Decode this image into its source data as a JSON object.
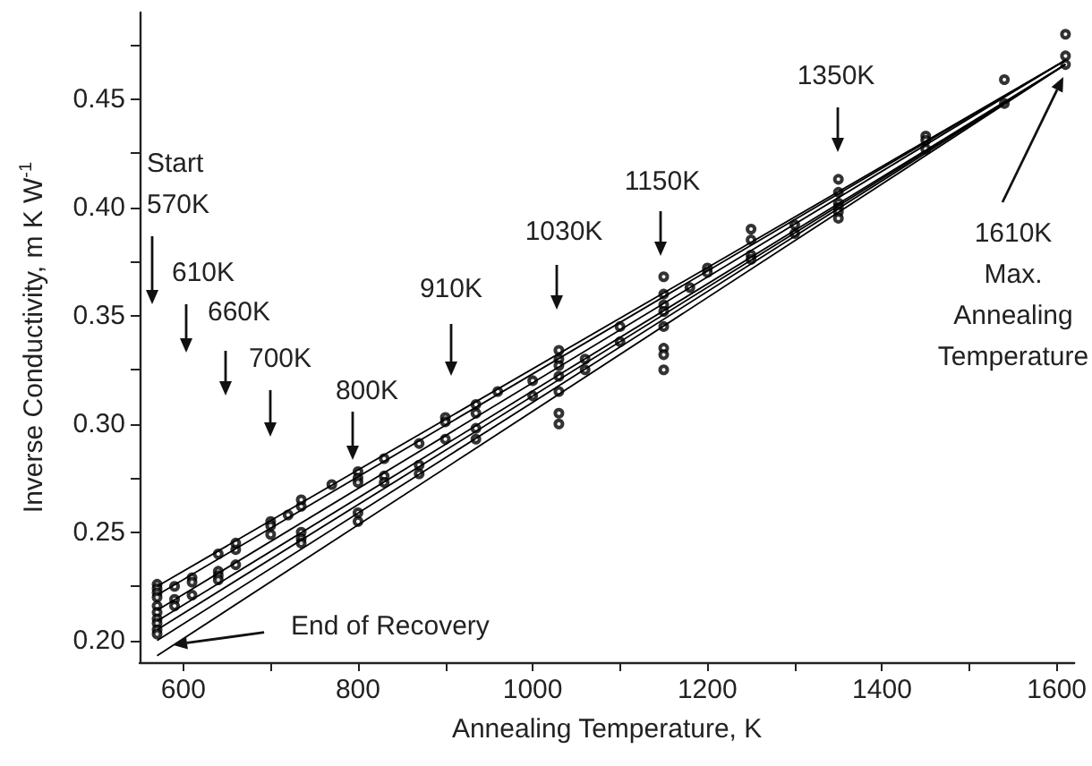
{
  "chart_data": {
    "type": "scatter",
    "xlabel": "Annealing Temperature, K",
    "ylabel": "Inverse Conductivity, m K W$^{-1}$",
    "xlim": [
      550,
      1620
    ],
    "ylim": [
      0.19,
      0.49
    ],
    "xticks": [
      600,
      {
        "value": 700,
        "label": null
      },
      800,
      {
        "value": 900,
        "label": null
      },
      1000,
      {
        "value": 1100,
        "label": null
      },
      1200,
      {
        "value": 1300,
        "label": null
      },
      1400,
      {
        "value": 1500,
        "label": null
      },
      1600
    ],
    "yticks": [
      {
        "value": 0.2,
        "label": "0.20"
      },
      {
        "value": 0.225,
        "label": null
      },
      0.25,
      {
        "value": 0.275,
        "label": null
      },
      {
        "value": 0.3,
        "label": "0.30"
      },
      {
        "value": 0.325,
        "label": null
      },
      0.35,
      {
        "value": 0.375,
        "label": null
      },
      {
        "value": 0.4,
        "label": "0.40"
      },
      {
        "value": 0.425,
        "label": null
      },
      0.45,
      {
        "value": 0.475,
        "label": null
      }
    ],
    "grid": false,
    "marker": "circle",
    "series": [
      {
        "color": "#000000",
        "x": [
          570,
          570,
          570,
          570,
          570,
          570,
          570,
          570,
          570,
          570,
          590,
          590,
          590,
          610,
          610,
          610,
          640,
          640,
          640,
          640,
          660,
          660,
          660,
          700,
          700,
          700,
          720,
          735,
          735,
          735,
          735,
          735,
          770,
          800,
          800,
          800,
          800,
          800,
          830,
          830,
          830,
          870,
          870,
          870,
          900,
          900,
          900,
          935,
          935,
          935,
          935,
          960,
          1000,
          1000,
          1030,
          1030,
          1030,
          1030,
          1030,
          1030,
          1030,
          1060,
          1060,
          1100,
          1100,
          1150,
          1150,
          1150,
          1150,
          1150,
          1150,
          1150,
          1150,
          1180,
          1200,
          1200,
          1250,
          1250,
          1250,
          1250,
          1300,
          1300,
          1350,
          1350,
          1350,
          1350,
          1350,
          1350,
          1450,
          1450,
          1450,
          1540,
          1540,
          1610,
          1610,
          1610
        ],
        "values": [
          0.226,
          0.224,
          0.222,
          0.22,
          0.216,
          0.213,
          0.21,
          0.208,
          0.205,
          0.203,
          0.225,
          0.219,
          0.216,
          0.229,
          0.227,
          0.221,
          0.232,
          0.24,
          0.23,
          0.228,
          0.242,
          0.245,
          0.235,
          0.249,
          0.255,
          0.253,
          0.258,
          0.262,
          0.265,
          0.25,
          0.247,
          0.245,
          0.272,
          0.278,
          0.275,
          0.273,
          0.255,
          0.259,
          0.284,
          0.276,
          0.273,
          0.291,
          0.281,
          0.277,
          0.303,
          0.301,
          0.293,
          0.309,
          0.305,
          0.298,
          0.293,
          0.315,
          0.32,
          0.313,
          0.334,
          0.33,
          0.327,
          0.322,
          0.315,
          0.305,
          0.3,
          0.33,
          0.325,
          0.345,
          0.338,
          0.368,
          0.36,
          0.355,
          0.352,
          0.345,
          0.335,
          0.332,
          0.325,
          0.363,
          0.372,
          0.37,
          0.39,
          0.385,
          0.378,
          0.376,
          0.392,
          0.388,
          0.413,
          0.407,
          0.402,
          0.4,
          0.398,
          0.395,
          0.433,
          0.431,
          0.427,
          0.459,
          0.448,
          0.48,
          0.47,
          0.466
        ]
      },
      {
        "type": "line",
        "marker": "none",
        "color": "#000000",
        "x": [
          570,
          1610
        ],
        "values": [
          0.225,
          0.468
        ]
      },
      {
        "type": "line",
        "marker": "none",
        "color": "#000000",
        "x": [
          570,
          1610
        ],
        "values": [
          0.221,
          0.468
        ]
      },
      {
        "type": "line",
        "marker": "none",
        "color": "#000000",
        "x": [
          570,
          1610
        ],
        "values": [
          0.214,
          0.468
        ]
      },
      {
        "type": "line",
        "marker": "none",
        "color": "#000000",
        "x": [
          570,
          1610
        ],
        "values": [
          0.209,
          0.466
        ]
      },
      {
        "type": "line",
        "marker": "none",
        "color": "#000000",
        "x": [
          570,
          1610
        ],
        "values": [
          0.205,
          0.466
        ]
      },
      {
        "type": "line",
        "marker": "none",
        "color": "#000000",
        "x": [
          570,
          1610
        ],
        "values": [
          0.2,
          0.466
        ]
      },
      {
        "type": "line",
        "marker": "none",
        "color": "#000000",
        "x": [
          570,
          1610
        ],
        "values": [
          0.193,
          0.466
        ]
      }
    ],
    "annotations": [
      "Start 570K",
      "610K",
      "660K",
      "700K",
      "800K",
      "910K",
      "1030K",
      "1150K",
      "1350K",
      "1610K Max. Annealing Temperature",
      {
        "text": "End of Recovery",
        "x": 588,
        "y": 0.198
      }
    ]
  }
}
